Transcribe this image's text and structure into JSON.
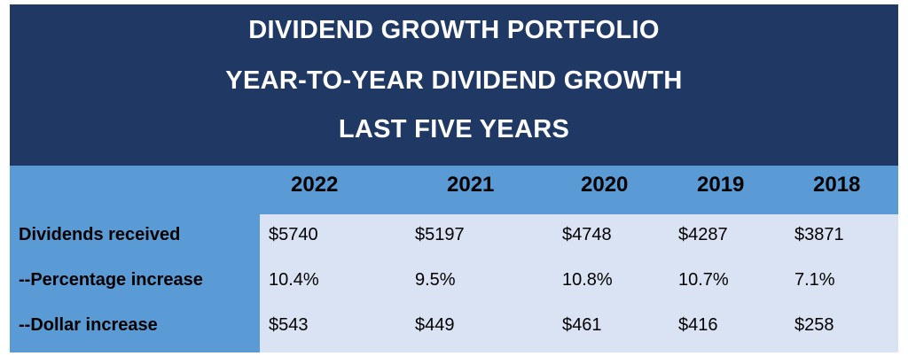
{
  "title": {
    "line1": "DIVIDEND GROWTH PORTFOLIO",
    "line2": "YEAR-TO-YEAR DIVIDEND GROWTH",
    "line3": "LAST FIVE YEARS"
  },
  "years": [
    "2022",
    "2021",
    "2020",
    "2019",
    "2018"
  ],
  "rows": [
    {
      "label": "Dividends received",
      "values": [
        "$5740",
        "$5197",
        "$4748",
        "$4287",
        "$3871"
      ]
    },
    {
      "label": "--Percentage increase",
      "values": [
        "10.4%",
        "9.5%",
        "10.8%",
        "10.7%",
        "7.1%"
      ]
    },
    {
      "label": "--Dollar increase",
      "values": [
        "$543",
        "$449",
        "$461",
        "$416",
        "$258"
      ]
    }
  ],
  "colors": {
    "title_bg": "#1f3864",
    "header_bg": "#5b9bd5",
    "cell_bg": "#dae3f3"
  }
}
